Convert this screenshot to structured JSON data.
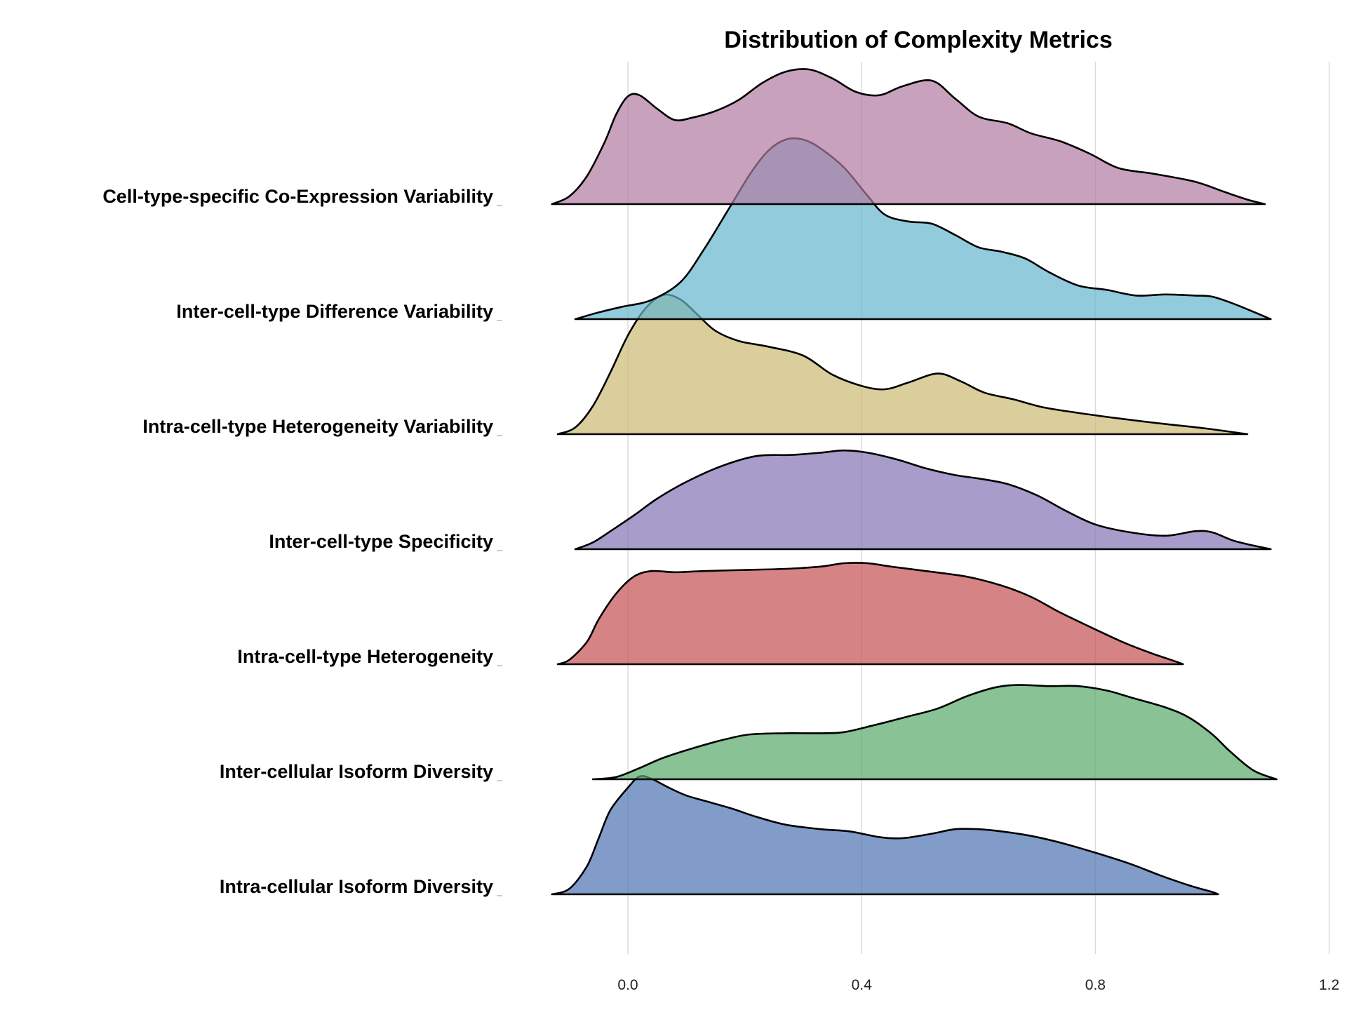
{
  "chart_data": {
    "type": "ridgeline",
    "title": "Distribution of Complexity Metrics",
    "xlabel": "",
    "ylabel": "",
    "xlim": [
      -0.2,
      1.22
    ],
    "x_ticks": [
      "0.0",
      "0.4",
      "0.8",
      "1.2"
    ],
    "x_tick_values": [
      0.0,
      0.4,
      0.8,
      1.2
    ],
    "grid": "vertical",
    "series": [
      {
        "name": "Intra-cellular Isoform Diversity",
        "color": "#4c72b0",
        "density": [
          [
            -0.13,
            0.0
          ],
          [
            -0.1,
            0.05
          ],
          [
            -0.07,
            0.25
          ],
          [
            -0.05,
            0.5
          ],
          [
            -0.03,
            0.75
          ],
          [
            0.0,
            0.95
          ],
          [
            0.02,
            1.05
          ],
          [
            0.04,
            1.03
          ],
          [
            0.07,
            0.95
          ],
          [
            0.1,
            0.88
          ],
          [
            0.14,
            0.82
          ],
          [
            0.18,
            0.76
          ],
          [
            0.22,
            0.69
          ],
          [
            0.27,
            0.62
          ],
          [
            0.33,
            0.58
          ],
          [
            0.38,
            0.56
          ],
          [
            0.43,
            0.51
          ],
          [
            0.47,
            0.5
          ],
          [
            0.52,
            0.54
          ],
          [
            0.56,
            0.58
          ],
          [
            0.6,
            0.58
          ],
          [
            0.64,
            0.56
          ],
          [
            0.69,
            0.52
          ],
          [
            0.74,
            0.46
          ],
          [
            0.8,
            0.37
          ],
          [
            0.86,
            0.27
          ],
          [
            0.91,
            0.17
          ],
          [
            0.96,
            0.08
          ],
          [
            1.0,
            0.02
          ],
          [
            1.01,
            0.0
          ]
        ]
      },
      {
        "name": "Inter-cellular Isoform Diversity",
        "color": "#55a868",
        "density": [
          [
            -0.06,
            0.0
          ],
          [
            -0.02,
            0.02
          ],
          [
            0.02,
            0.1
          ],
          [
            0.06,
            0.19
          ],
          [
            0.12,
            0.29
          ],
          [
            0.17,
            0.36
          ],
          [
            0.21,
            0.4
          ],
          [
            0.27,
            0.41
          ],
          [
            0.33,
            0.41
          ],
          [
            0.37,
            0.42
          ],
          [
            0.42,
            0.48
          ],
          [
            0.48,
            0.56
          ],
          [
            0.53,
            0.63
          ],
          [
            0.58,
            0.74
          ],
          [
            0.63,
            0.82
          ],
          [
            0.67,
            0.84
          ],
          [
            0.72,
            0.83
          ],
          [
            0.77,
            0.83
          ],
          [
            0.82,
            0.79
          ],
          [
            0.86,
            0.73
          ],
          [
            0.92,
            0.64
          ],
          [
            0.96,
            0.55
          ],
          [
            1.0,
            0.4
          ],
          [
            1.03,
            0.25
          ],
          [
            1.07,
            0.08
          ],
          [
            1.11,
            0.0
          ]
        ]
      },
      {
        "name": "Intra-cell-type Heterogeneity",
        "color": "#c44e52",
        "density": [
          [
            -0.12,
            0.0
          ],
          [
            -0.1,
            0.04
          ],
          [
            -0.07,
            0.2
          ],
          [
            -0.05,
            0.4
          ],
          [
            -0.02,
            0.63
          ],
          [
            0.01,
            0.78
          ],
          [
            0.04,
            0.83
          ],
          [
            0.08,
            0.82
          ],
          [
            0.13,
            0.83
          ],
          [
            0.2,
            0.84
          ],
          [
            0.27,
            0.85
          ],
          [
            0.33,
            0.87
          ],
          [
            0.37,
            0.9
          ],
          [
            0.41,
            0.9
          ],
          [
            0.45,
            0.87
          ],
          [
            0.51,
            0.83
          ],
          [
            0.58,
            0.78
          ],
          [
            0.64,
            0.7
          ],
          [
            0.69,
            0.6
          ],
          [
            0.74,
            0.46
          ],
          [
            0.8,
            0.31
          ],
          [
            0.85,
            0.19
          ],
          [
            0.9,
            0.09
          ],
          [
            0.94,
            0.02
          ],
          [
            0.95,
            0.0
          ]
        ]
      },
      {
        "name": "Inter-cell-type Specificity",
        "color": "#8172b3",
        "density": [
          [
            -0.09,
            0.0
          ],
          [
            -0.06,
            0.06
          ],
          [
            -0.03,
            0.16
          ],
          [
            0.01,
            0.3
          ],
          [
            0.05,
            0.45
          ],
          [
            0.1,
            0.6
          ],
          [
            0.16,
            0.74
          ],
          [
            0.22,
            0.83
          ],
          [
            0.28,
            0.84
          ],
          [
            0.33,
            0.86
          ],
          [
            0.37,
            0.88
          ],
          [
            0.41,
            0.86
          ],
          [
            0.46,
            0.8
          ],
          [
            0.51,
            0.72
          ],
          [
            0.56,
            0.66
          ],
          [
            0.6,
            0.63
          ],
          [
            0.65,
            0.58
          ],
          [
            0.7,
            0.48
          ],
          [
            0.75,
            0.34
          ],
          [
            0.8,
            0.22
          ],
          [
            0.86,
            0.15
          ],
          [
            0.92,
            0.12
          ],
          [
            0.97,
            0.16
          ],
          [
            1.0,
            0.15
          ],
          [
            1.04,
            0.07
          ],
          [
            1.1,
            0.0
          ]
        ]
      },
      {
        "name": "Intra-cell-type Heterogeneity Variability",
        "color": "#ccb974",
        "density": [
          [
            -0.12,
            0.0
          ],
          [
            -0.09,
            0.06
          ],
          [
            -0.06,
            0.25
          ],
          [
            -0.03,
            0.55
          ],
          [
            0.0,
            0.88
          ],
          [
            0.03,
            1.12
          ],
          [
            0.06,
            1.24
          ],
          [
            0.09,
            1.2
          ],
          [
            0.12,
            1.06
          ],
          [
            0.15,
            0.92
          ],
          [
            0.19,
            0.83
          ],
          [
            0.24,
            0.78
          ],
          [
            0.3,
            0.7
          ],
          [
            0.35,
            0.53
          ],
          [
            0.4,
            0.43
          ],
          [
            0.44,
            0.4
          ],
          [
            0.48,
            0.46
          ],
          [
            0.53,
            0.54
          ],
          [
            0.57,
            0.47
          ],
          [
            0.61,
            0.37
          ],
          [
            0.66,
            0.31
          ],
          [
            0.71,
            0.24
          ],
          [
            0.77,
            0.19
          ],
          [
            0.84,
            0.14
          ],
          [
            0.92,
            0.09
          ],
          [
            0.99,
            0.05
          ],
          [
            1.06,
            0.0
          ]
        ]
      },
      {
        "name": "Inter-cell-type Difference Variability",
        "color": "#64b5cd",
        "density": [
          [
            -0.09,
            0.0
          ],
          [
            -0.05,
            0.06
          ],
          [
            -0.01,
            0.11
          ],
          [
            0.04,
            0.17
          ],
          [
            0.09,
            0.33
          ],
          [
            0.13,
            0.62
          ],
          [
            0.17,
            0.96
          ],
          [
            0.21,
            1.3
          ],
          [
            0.24,
            1.5
          ],
          [
            0.27,
            1.6
          ],
          [
            0.3,
            1.6
          ],
          [
            0.33,
            1.52
          ],
          [
            0.37,
            1.35
          ],
          [
            0.41,
            1.1
          ],
          [
            0.44,
            0.93
          ],
          [
            0.48,
            0.87
          ],
          [
            0.52,
            0.85
          ],
          [
            0.56,
            0.75
          ],
          [
            0.6,
            0.64
          ],
          [
            0.64,
            0.6
          ],
          [
            0.68,
            0.54
          ],
          [
            0.72,
            0.42
          ],
          [
            0.77,
            0.3
          ],
          [
            0.82,
            0.26
          ],
          [
            0.87,
            0.21
          ],
          [
            0.92,
            0.22
          ],
          [
            0.97,
            0.21
          ],
          [
            1.0,
            0.2
          ],
          [
            1.04,
            0.13
          ],
          [
            1.1,
            0.0
          ]
        ]
      },
      {
        "name": "Cell-type-specific Co-Expression Variability",
        "color": "#b07aa1",
        "density": [
          [
            -0.13,
            0.0
          ],
          [
            -0.1,
            0.07
          ],
          [
            -0.07,
            0.25
          ],
          [
            -0.04,
            0.55
          ],
          [
            -0.02,
            0.8
          ],
          [
            0.0,
            0.96
          ],
          [
            0.02,
            0.97
          ],
          [
            0.05,
            0.85
          ],
          [
            0.08,
            0.75
          ],
          [
            0.11,
            0.77
          ],
          [
            0.15,
            0.83
          ],
          [
            0.19,
            0.93
          ],
          [
            0.23,
            1.08
          ],
          [
            0.27,
            1.18
          ],
          [
            0.31,
            1.2
          ],
          [
            0.35,
            1.12
          ],
          [
            0.39,
            1.0
          ],
          [
            0.43,
            0.97
          ],
          [
            0.47,
            1.05
          ],
          [
            0.52,
            1.1
          ],
          [
            0.56,
            0.94
          ],
          [
            0.6,
            0.78
          ],
          [
            0.65,
            0.72
          ],
          [
            0.69,
            0.63
          ],
          [
            0.74,
            0.56
          ],
          [
            0.79,
            0.45
          ],
          [
            0.84,
            0.32
          ],
          [
            0.9,
            0.27
          ],
          [
            0.97,
            0.2
          ],
          [
            1.02,
            0.11
          ],
          [
            1.06,
            0.04
          ],
          [
            1.09,
            0.0
          ]
        ]
      }
    ]
  }
}
